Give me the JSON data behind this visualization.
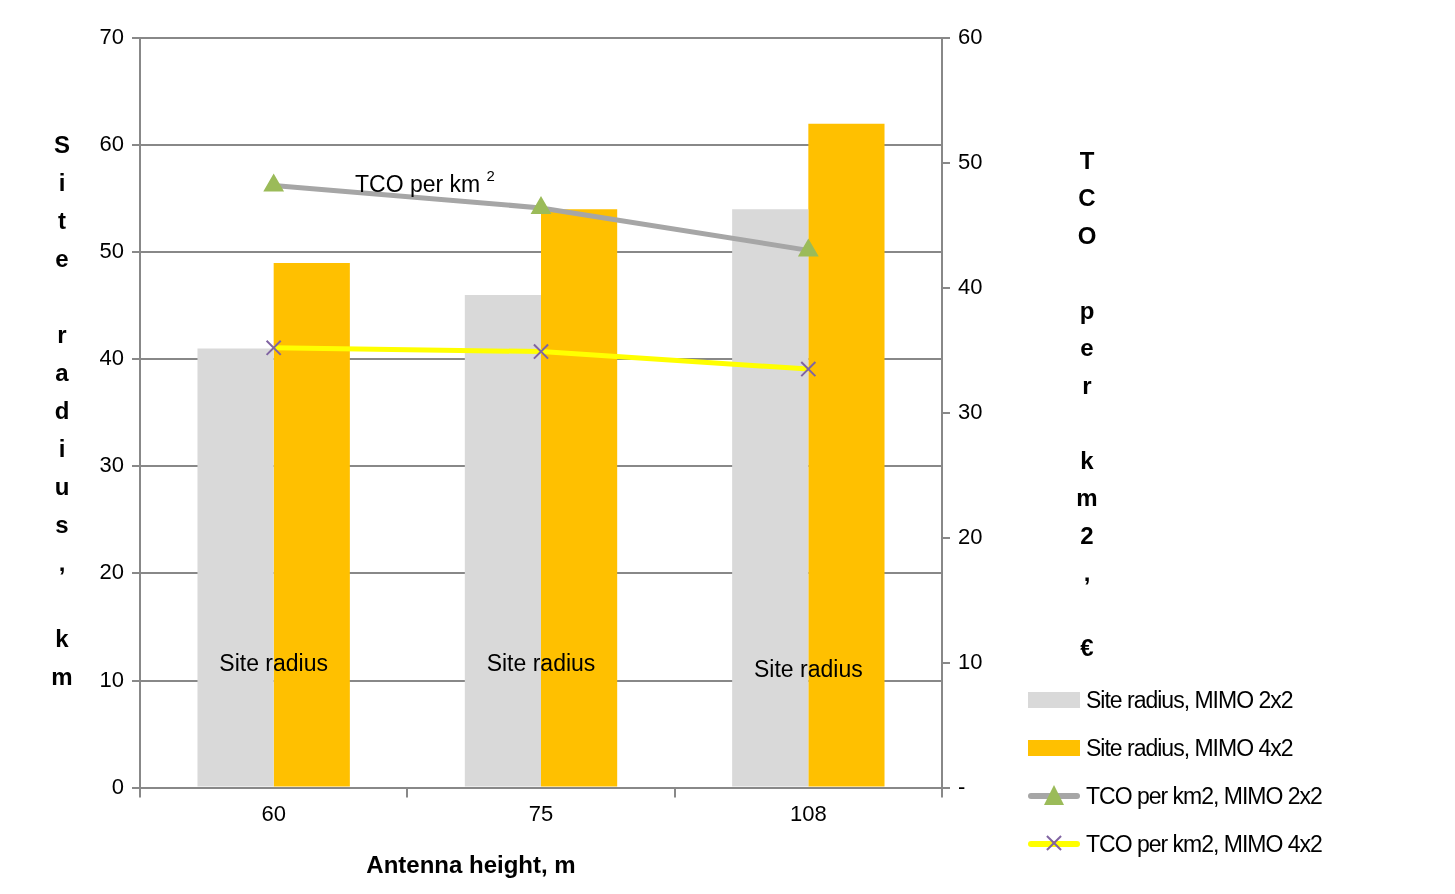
{
  "chart_data": {
    "type": "bar",
    "xlabel": "Antenna height, m",
    "ylabel": "Site radius, km",
    "y2label": "TCO per km2, €",
    "categories": [
      "60",
      "75",
      "108"
    ],
    "series": [
      {
        "name": "Site radius, MIMO 2x2",
        "color": "#d9d9d9",
        "values": [
          41,
          46,
          54
        ]
      },
      {
        "name": "Site radius, MIMO 4x2",
        "color": "#ffc000",
        "values": [
          49,
          54,
          62
        ]
      },
      {
        "name": "TCO per km2, MIMO 2x2",
        "type": "line",
        "axis": "y2",
        "color": "#a6a6a6",
        "marker": "triangle",
        "colors": [
          "#9bbb59",
          "#9bbb59",
          "#9bbb59"
        ],
        "values": [
          48.2,
          46.4,
          43.0
        ]
      },
      {
        "name": "TCO per km2, MIMO 4x2",
        "type": "line",
        "axis": "y2",
        "color": "#ffff00",
        "marker": "cross",
        "colors": [
          "#8064a2",
          "#8064a2",
          "#8064a2"
        ],
        "values": [
          35.2,
          34.9,
          33.5
        ]
      }
    ],
    "ylim": [
      0,
      70
    ],
    "yticks": [
      0,
      10,
      20,
      30,
      40,
      50,
      60,
      70
    ],
    "y2lim": [
      0,
      60
    ],
    "y2ticks": [
      {
        "value": 0,
        "label": "-"
      },
      10,
      20,
      30,
      40,
      50,
      60
    ],
    "grid": "y",
    "legend": "bottom right",
    "annotations": [
      "TCO per km $^{2}$",
      {
        "text": "Site radius",
        "x": "60",
        "y": 11.5
      },
      {
        "text": "Site radius",
        "x": "75",
        "y": 11.5
      },
      {
        "text": "Site radius",
        "x": "108",
        "y": 10.9
      }
    ]
  }
}
